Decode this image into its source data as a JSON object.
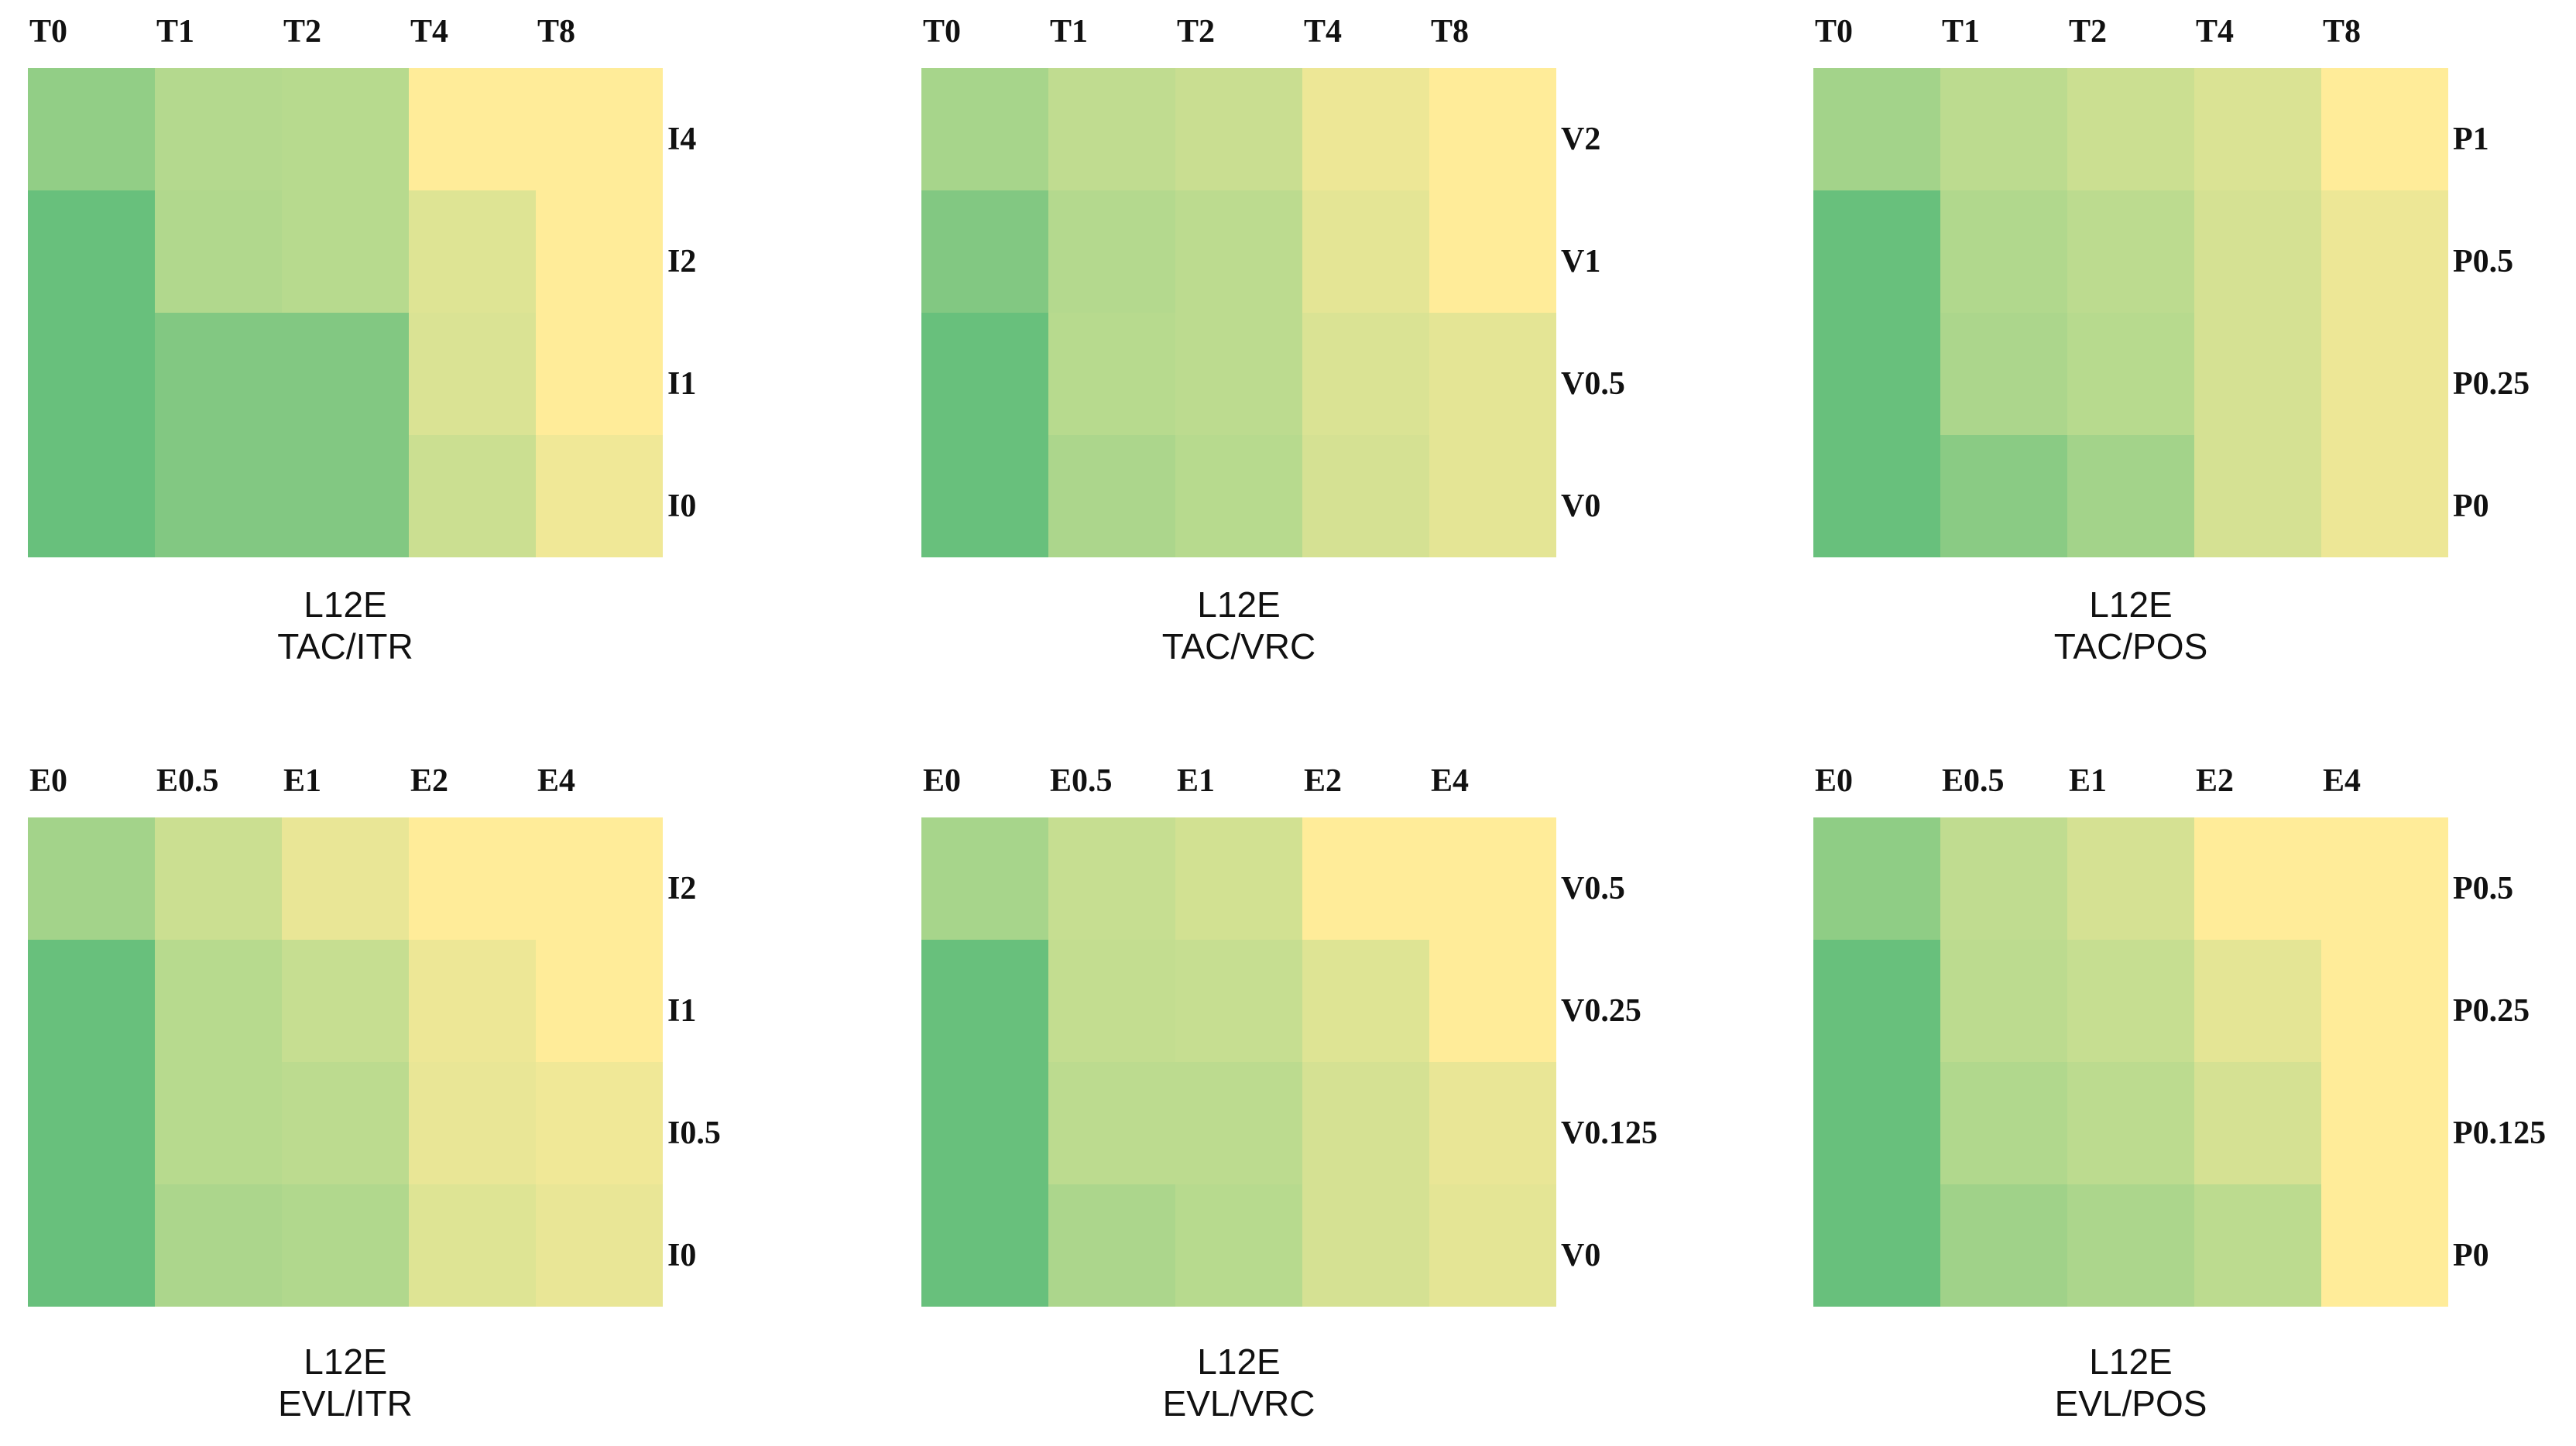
{
  "chart_data": [
    {
      "type": "heatmap",
      "title": "L12E",
      "subtitle": "TAC/ITR",
      "x_labels": [
        "T0",
        "T1",
        "T2",
        "T4",
        "T8"
      ],
      "y_labels": [
        "I4",
        "I2",
        "I1",
        "I0"
      ],
      "values": [
        [
          0.3,
          0.5,
          0.52,
          1.0,
          1.0
        ],
        [
          0.05,
          0.48,
          0.52,
          0.78,
          1.0
        ],
        [
          0.05,
          0.2,
          0.2,
          0.75,
          1.0
        ],
        [
          0.05,
          0.2,
          0.2,
          0.65,
          0.9
        ]
      ],
      "color_scale": {
        "low": "#60bd7a",
        "mid": "#b4d98e",
        "high": "#ffec99"
      }
    },
    {
      "type": "heatmap",
      "title": "L12E",
      "subtitle": "TAC/VRC",
      "x_labels": [
        "T0",
        "T1",
        "T2",
        "T4",
        "T8"
      ],
      "y_labels": [
        "V2",
        "V1",
        "V0.5",
        "V0"
      ],
      "values": [
        [
          0.42,
          0.58,
          0.64,
          0.88,
          1.0
        ],
        [
          0.2,
          0.5,
          0.55,
          0.82,
          1.0
        ],
        [
          0.05,
          0.52,
          0.55,
          0.75,
          0.82
        ],
        [
          0.05,
          0.45,
          0.52,
          0.72,
          0.82
        ]
      ],
      "color_scale": {
        "low": "#60bd7a",
        "mid": "#b4d98e",
        "high": "#ffec99"
      }
    },
    {
      "type": "heatmap",
      "title": "L12E",
      "subtitle": "TAC/POS",
      "x_labels": [
        "T0",
        "T1",
        "T2",
        "T4",
        "T8"
      ],
      "y_labels": [
        "P1",
        "P0.5",
        "P0.25",
        "P0"
      ],
      "values": [
        [
          0.4,
          0.55,
          0.65,
          0.75,
          1.0
        ],
        [
          0.05,
          0.48,
          0.55,
          0.72,
          0.88
        ],
        [
          0.05,
          0.45,
          0.52,
          0.72,
          0.88
        ],
        [
          0.05,
          0.25,
          0.4,
          0.72,
          0.88
        ]
      ],
      "color_scale": {
        "low": "#60bd7a",
        "mid": "#b4d98e",
        "high": "#ffec99"
      }
    },
    {
      "type": "heatmap",
      "title": "L12E",
      "subtitle": "EVL/ITR",
      "x_labels": [
        "E0",
        "E0.5",
        "E1",
        "E2",
        "E4"
      ],
      "y_labels": [
        "I2",
        "I1",
        "I0.5",
        "I0"
      ],
      "values": [
        [
          0.4,
          0.65,
          0.85,
          1.0,
          1.0
        ],
        [
          0.05,
          0.52,
          0.62,
          0.88,
          1.0
        ],
        [
          0.05,
          0.52,
          0.55,
          0.85,
          0.9
        ],
        [
          0.05,
          0.45,
          0.48,
          0.78,
          0.85
        ]
      ],
      "color_scale": {
        "low": "#60bd7a",
        "mid": "#b4d98e",
        "high": "#ffec99"
      }
    },
    {
      "type": "heatmap",
      "title": "L12E",
      "subtitle": "EVL/VRC",
      "x_labels": [
        "E0",
        "E0.5",
        "E1",
        "E2",
        "E4"
      ],
      "y_labels": [
        "V0.5",
        "V0.25",
        "V0.125",
        "V0"
      ],
      "values": [
        [
          0.42,
          0.62,
          0.7,
          1.0,
          1.0
        ],
        [
          0.05,
          0.6,
          0.62,
          0.78,
          1.0
        ],
        [
          0.05,
          0.55,
          0.55,
          0.72,
          0.85
        ],
        [
          0.05,
          0.45,
          0.52,
          0.72,
          0.82
        ]
      ],
      "color_scale": {
        "low": "#60bd7a",
        "mid": "#b4d98e",
        "high": "#ffec99"
      }
    },
    {
      "type": "heatmap",
      "title": "L12E",
      "subtitle": "EVL/POS",
      "x_labels": [
        "E0",
        "E0.5",
        "E1",
        "E2",
        "E4"
      ],
      "y_labels": [
        "P0.5",
        "P0.25",
        "P0.125",
        "P0"
      ],
      "values": [
        [
          0.28,
          0.58,
          0.72,
          1.0,
          1.0
        ],
        [
          0.05,
          0.55,
          0.62,
          0.82,
          1.0
        ],
        [
          0.05,
          0.48,
          0.55,
          0.72,
          1.0
        ],
        [
          0.05,
          0.38,
          0.45,
          0.55,
          1.0
        ]
      ],
      "color_scale": {
        "low": "#60bd7a",
        "mid": "#b4d98e",
        "high": "#ffec99"
      }
    }
  ]
}
